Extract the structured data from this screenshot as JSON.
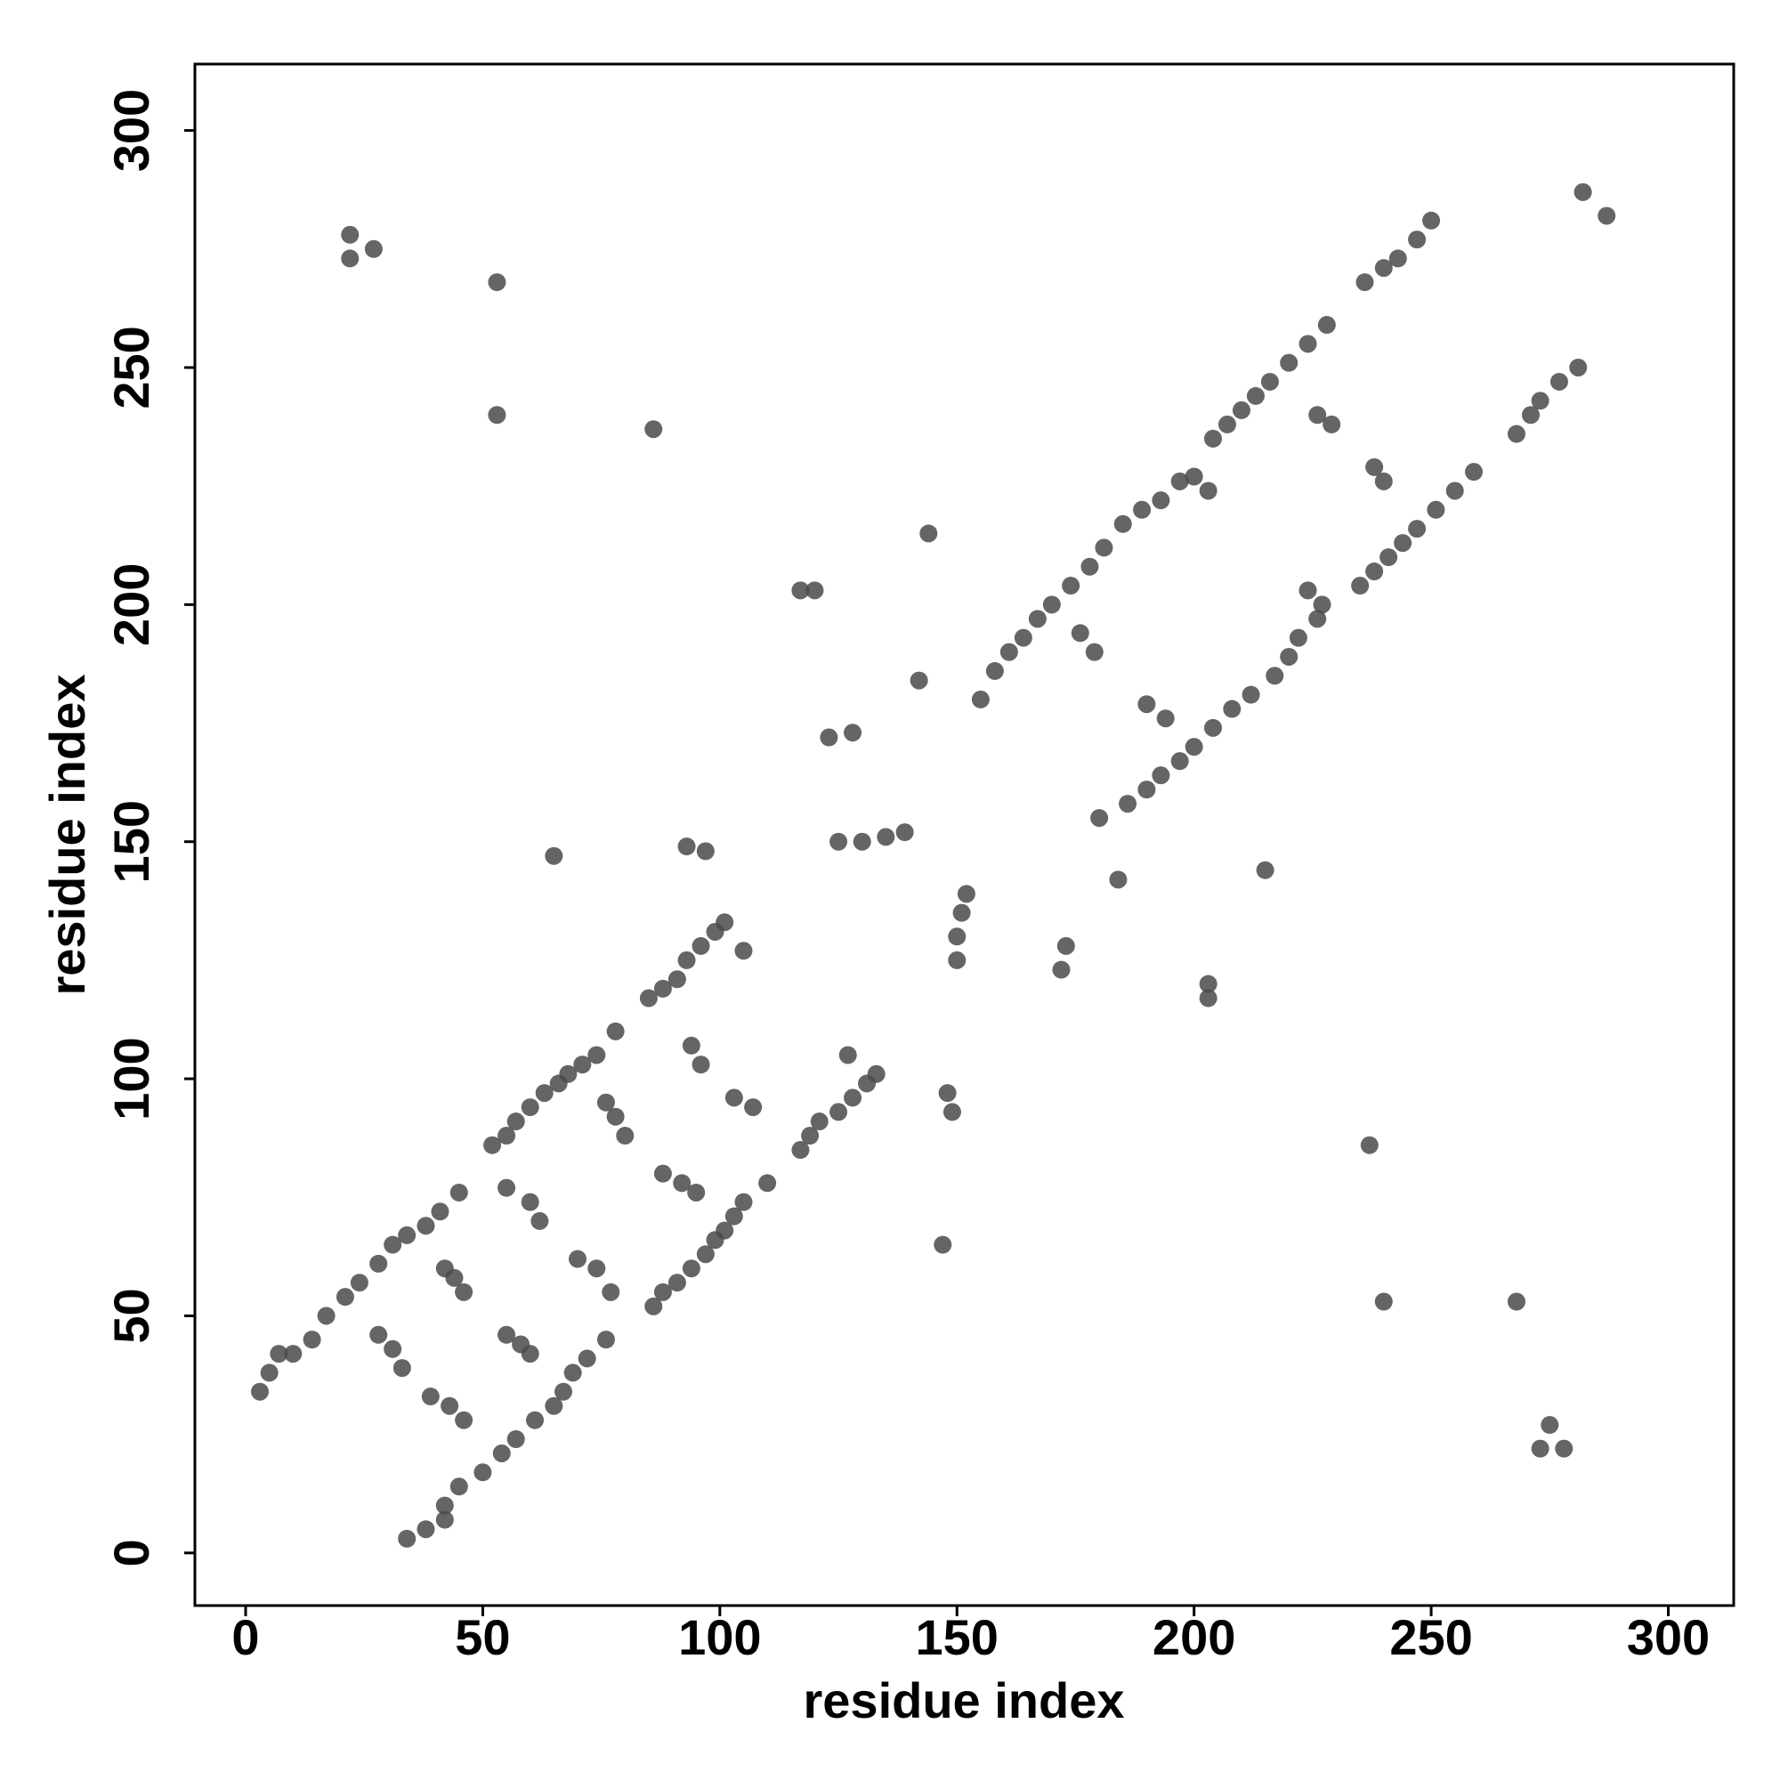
{
  "chart_data": {
    "type": "scatter",
    "xlabel": "residue index",
    "ylabel": "residue index",
    "xlim": [
      -10.7,
      313.8
    ],
    "ylim": [
      -11.1,
      314
    ],
    "xticks": [
      0,
      50,
      100,
      150,
      200,
      250,
      300
    ],
    "yticks": [
      0,
      50,
      100,
      150,
      200,
      250,
      300
    ],
    "grid": false,
    "series": [
      {
        "color": "#4a4a4a",
        "x": [
          3,
          5,
          7,
          10,
          14,
          17,
          21,
          24,
          28,
          31,
          34,
          38,
          41,
          45,
          52,
          55,
          57,
          60,
          63,
          66,
          68,
          71,
          74,
          78,
          85,
          88,
          91,
          93,
          96,
          99,
          101,
          28,
          31,
          33,
          42,
          44,
          46,
          55,
          60,
          62,
          76,
          78,
          80,
          94,
          96,
          105,
          155,
          158,
          161,
          164,
          167,
          170,
          174,
          178,
          181,
          185,
          189,
          193,
          197,
          204,
          207,
          210,
          213,
          216,
          220,
          224,
          228,
          236,
          240,
          243,
          247,
          250,
          176,
          179,
          200,
          203,
          226,
          229,
          22,
          22,
          27,
          53,
          53,
          86,
          117,
          120,
          144,
          65,
          93,
          97,
          123,
          128,
          125,
          130,
          135,
          139,
          142,
          282,
          34,
          38,
          42,
          42,
          45,
          50,
          54,
          57,
          61,
          65,
          67,
          69,
          72,
          76,
          86,
          88,
          91,
          94,
          97,
          99,
          101,
          103,
          105,
          110,
          117,
          119,
          121,
          125,
          128,
          131,
          133,
          46,
          43,
          39,
          60,
          58,
          55,
          77,
          74,
          70,
          95,
          92,
          88,
          107,
          103,
          127,
          180,
          186,
          190,
          193,
          197,
          200,
          204,
          208,
          212,
          217,
          220,
          222,
          226,
          235,
          238,
          241,
          244,
          247,
          251,
          255,
          259,
          268,
          271,
          273,
          277,
          281,
          194,
          190,
          227,
          224,
          240,
          238,
          278,
          273,
          275,
          268,
          240,
          237,
          203,
          203,
          215,
          147,
          149,
          148,
          172,
          173,
          150,
          150,
          151,
          152,
          184,
          287
        ],
        "y": [
          34,
          38,
          42,
          42,
          45,
          50,
          54,
          57,
          61,
          65,
          67,
          69,
          72,
          76,
          86,
          88,
          91,
          94,
          97,
          99,
          101,
          103,
          105,
          110,
          117,
          119,
          121,
          125,
          128,
          131,
          133,
          46,
          43,
          39,
          60,
          58,
          55,
          77,
          74,
          70,
          95,
          92,
          88,
          107,
          103,
          127,
          180,
          186,
          190,
          193,
          197,
          200,
          204,
          208,
          212,
          217,
          220,
          222,
          226,
          235,
          238,
          241,
          244,
          247,
          251,
          255,
          259,
          268,
          271,
          273,
          277,
          281,
          194,
          190,
          227,
          224,
          240,
          238,
          278,
          273,
          275,
          268,
          240,
          237,
          203,
          203,
          215,
          147,
          149,
          148,
          172,
          173,
          150,
          150,
          151,
          152,
          184,
          287,
          3,
          5,
          7,
          10,
          14,
          17,
          21,
          24,
          28,
          31,
          34,
          38,
          41,
          45,
          52,
          55,
          57,
          60,
          63,
          66,
          68,
          71,
          74,
          78,
          85,
          88,
          91,
          93,
          96,
          99,
          101,
          28,
          31,
          33,
          42,
          44,
          46,
          55,
          60,
          62,
          76,
          78,
          80,
          94,
          96,
          105,
          155,
          158,
          161,
          164,
          167,
          170,
          174,
          178,
          181,
          185,
          189,
          193,
          197,
          204,
          207,
          210,
          213,
          216,
          220,
          224,
          228,
          236,
          240,
          243,
          247,
          250,
          176,
          179,
          200,
          203,
          226,
          229,
          22,
          22,
          27,
          53,
          53,
          86,
          117,
          120,
          144,
          65,
          93,
          97,
          123,
          128,
          125,
          130,
          135,
          139,
          142,
          282
        ]
      }
    ]
  }
}
